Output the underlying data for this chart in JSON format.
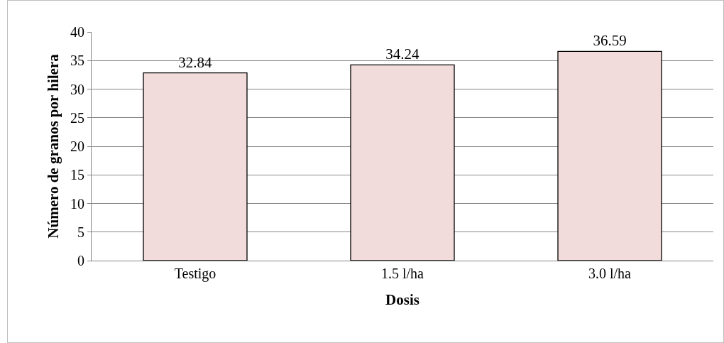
{
  "chart_data": {
    "type": "bar",
    "xlabel": "Dosis",
    "ylabel": "Número de granos por hilera",
    "categories": [
      "Testigo",
      "1.5 l/ha",
      "3.0 l/ha"
    ],
    "values": [
      32.84,
      34.24,
      36.59
    ],
    "color": "#f2dcdb",
    "ylim": [
      0,
      40
    ],
    "yticks": [
      0,
      5,
      10,
      15,
      20,
      25,
      30,
      35,
      40
    ],
    "grid": "y",
    "data_labels": true
  }
}
